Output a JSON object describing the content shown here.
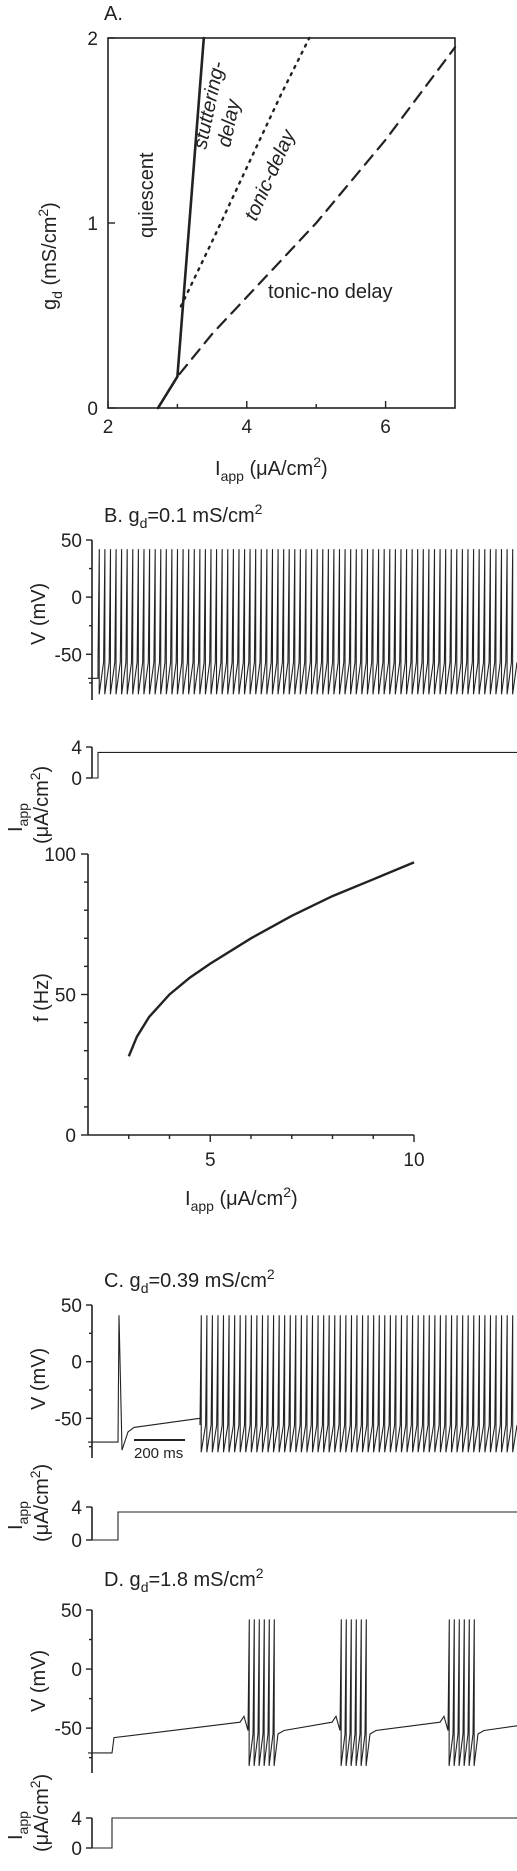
{
  "chart_data": [
    {
      "id": "A",
      "type": "line",
      "panel_label": "A.",
      "xlabel": "I",
      "xlabel_sub": "app",
      "xlabel_unit": " (μA/cm",
      "xlabel_sup": "2",
      "xlabel_close": ")",
      "ylabel": "g",
      "ylabel_sub": "d",
      "ylabel_unit": " (mS/cm",
      "ylabel_sup": "2",
      "ylabel_close": ")",
      "xlim": [
        2,
        7
      ],
      "ylim": [
        0,
        2
      ],
      "xticks": [
        "2",
        "4",
        "6"
      ],
      "yticks": [
        "0",
        "1",
        "2"
      ],
      "series": [
        {
          "style": "solid",
          "x": [
            2.72,
            3.0,
            3.38
          ],
          "y": [
            0.0,
            0.17,
            2.0
          ]
        },
        {
          "style": "dotted",
          "x": [
            3.05,
            3.5,
            4.0,
            4.5,
            4.9
          ],
          "y": [
            0.55,
            0.9,
            1.3,
            1.7,
            2.0
          ]
        },
        {
          "style": "dashed",
          "x": [
            2.72,
            3.0,
            3.5,
            4.0,
            5.0,
            6.0,
            7.0
          ],
          "y": [
            0.0,
            0.17,
            0.4,
            0.6,
            1.0,
            1.45,
            1.95
          ]
        }
      ],
      "regions": [
        "quiescent",
        "stuttering-",
        "delay",
        "tonic-delay",
        "tonic-no delay"
      ]
    },
    {
      "id": "B",
      "type": "line",
      "title": "B. g",
      "title_sub": "d",
      "title_rest": "=0.1 mS/cm",
      "title_sup": "2",
      "v_label": "V (mV)",
      "v_ticks": [
        "50",
        "0",
        "-50"
      ],
      "v_range": [
        -90,
        50
      ],
      "spikes": 75,
      "spike_peak": 42,
      "spike_trough": -85,
      "rest_v": -71,
      "i_label": "I",
      "i_label_sub": "app",
      "i_label_unit": "(μA/cm",
      "i_label_sup": "2",
      "i_label_close": ")",
      "i_ticks": [
        "4",
        "0"
      ],
      "i_step": [
        0,
        3.3
      ]
    },
    {
      "id": "B-fI",
      "type": "line",
      "xlabel": "I",
      "xlabel_sub": "app",
      "xlabel_unit": " (μA/cm",
      "xlabel_sup": "2",
      "xlabel_close": ")",
      "ylabel": "f (Hz)",
      "xlim": [
        2,
        10
      ],
      "ylim": [
        0,
        100
      ],
      "xticks": [
        "5",
        "10"
      ],
      "yticks": [
        "0",
        "50",
        "100"
      ],
      "x": [
        3.0,
        3.2,
        3.5,
        4.0,
        4.5,
        5.0,
        6.0,
        7.0,
        8.0,
        9.0,
        10.0
      ],
      "y": [
        28,
        35,
        42,
        50,
        56,
        61,
        70,
        78,
        85,
        91,
        97
      ]
    },
    {
      "id": "C",
      "type": "line",
      "title": "C. g",
      "title_sub": "d",
      "title_rest": "=0.39 mS/cm",
      "title_sup": "2",
      "v_label": "V (mV)",
      "v_ticks": [
        "50",
        "0",
        "-50"
      ],
      "scale_bar": "200 ms",
      "spikes": 57,
      "spike_peak": 41,
      "spike_trough": -80,
      "rest_v": -71,
      "i_label": "I",
      "i_label_sub": "app",
      "i_label_unit": "(μA/cm",
      "i_label_sup": "2",
      "i_label_close": ")",
      "i_ticks": [
        "4",
        "0"
      ],
      "i_step": [
        0,
        3.4
      ]
    },
    {
      "id": "D",
      "type": "line",
      "title": "D. g",
      "title_sub": "d",
      "title_rest": "=1.8 mS/cm",
      "title_sup": "2",
      "v_label": "V (mV)",
      "v_ticks": [
        "50",
        "0",
        "-50"
      ],
      "bursts": 3,
      "spikes_per_burst": 6,
      "spike_peak": 42,
      "spike_trough": -82,
      "rest_v": -71,
      "i_label": "I",
      "i_label_sub": "app",
      "i_label_unit": "(μA/cm",
      "i_label_sup": "2",
      "i_label_close": ")",
      "i_ticks": [
        "4",
        "0"
      ],
      "i_step": [
        0,
        4
      ]
    }
  ]
}
